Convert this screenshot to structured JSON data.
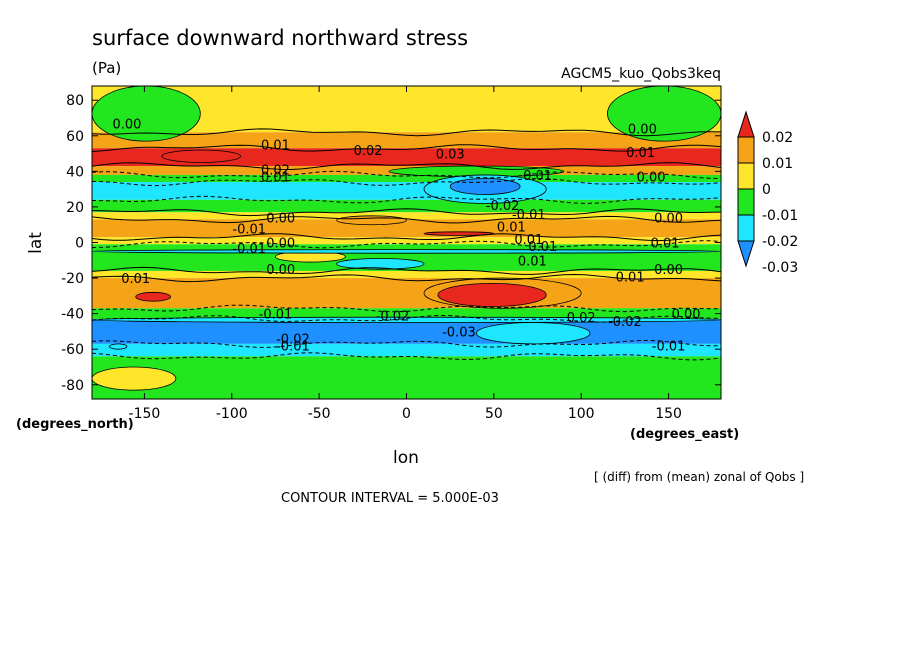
{
  "chart_data": {
    "type": "heatmap",
    "title": "surface downward northward stress",
    "units": "(Pa)",
    "run_label": "AGCM5_kuo_Qobs3keq",
    "xlabel": "lon",
    "ylabel": "lat",
    "x_units": "(degrees_east)",
    "y_units": "(degrees_north)",
    "xlim": [
      -180,
      180
    ],
    "ylim": [
      -88,
      88
    ],
    "x_ticks": [
      "-150",
      "-100",
      "-50",
      "0",
      "50",
      "100",
      "150"
    ],
    "x_tick_values": [
      -150,
      -100,
      -50,
      0,
      50,
      100,
      150
    ],
    "y_ticks": [
      "80",
      "60",
      "40",
      "20",
      "0",
      "-20",
      "-40",
      "-60",
      "-80"
    ],
    "y_tick_values": [
      80,
      60,
      40,
      20,
      0,
      -20,
      -40,
      -60,
      -80
    ],
    "note": "[ (diff) from (mean) zonal of Qobs ]",
    "contour_interval": "CONTOUR INTERVAL = 5.000E-03",
    "colorbar": {
      "labels": [
        "0.02",
        "0.01",
        "0",
        "-0.01",
        "-0.02",
        "-0.03"
      ],
      "colors": [
        "#e8281e",
        "#f5a418",
        "#ffe62a",
        "#22e61e",
        "#1ee6ff",
        "#1e90ff"
      ]
    },
    "bands": [
      {
        "lat": [
          62,
          88
        ],
        "level": "0",
        "color": "#ffe62a"
      },
      {
        "lat": [
          53,
          62
        ],
        "level": "0.01",
        "color": "#f5a418"
      },
      {
        "lat": [
          43,
          53
        ],
        "level": "0.02",
        "color": "#e8281e"
      },
      {
        "lat": [
          38,
          43
        ],
        "level": "0.01",
        "color": "#f5a418"
      },
      {
        "lat": [
          34,
          38
        ],
        "level": "-0.01",
        "color": "#22e61e"
      },
      {
        "lat": [
          24,
          34
        ],
        "level": "-0.02",
        "color": "#1ee6ff"
      },
      {
        "lat": [
          17,
          24
        ],
        "level": "-0.01",
        "color": "#22e61e"
      },
      {
        "lat": [
          13,
          17
        ],
        "level": "0",
        "color": "#ffe62a"
      },
      {
        "lat": [
          3,
          13
        ],
        "level": "0.01",
        "color": "#f5a418"
      },
      {
        "lat": [
          -1,
          3
        ],
        "level": "0",
        "color": "#ffe62a"
      },
      {
        "lat": [
          -16,
          -1
        ],
        "level": "-0.01",
        "color": "#22e61e"
      },
      {
        "lat": [
          -20,
          -16
        ],
        "level": "0",
        "color": "#ffe62a"
      },
      {
        "lat": [
          -37,
          -20
        ],
        "level": "0.01",
        "color": "#f5a418"
      },
      {
        "lat": [
          -43,
          -37
        ],
        "level": "-0.01",
        "color": "#22e61e"
      },
      {
        "lat": [
          -57,
          -43
        ],
        "level": "-0.03",
        "color": "#1e90ff"
      },
      {
        "lat": [
          -64,
          -57
        ],
        "level": "-0.02",
        "color": "#1ee6ff"
      },
      {
        "lat": [
          -88,
          -64
        ],
        "level": "-0.01",
        "color": "#22e61e"
      }
    ],
    "patches": [
      {
        "lon": [
          -180,
          -118
        ],
        "lat": [
          57,
          88
        ],
        "level": "-0.01",
        "color": "#22e61e"
      },
      {
        "lon": [
          115,
          180
        ],
        "lat": [
          57,
          88
        ],
        "level": "-0.01",
        "color": "#22e61e"
      },
      {
        "lon": [
          -140,
          -95
        ],
        "lat": [
          45,
          52
        ],
        "level": "0.02",
        "color": "#e8281e"
      },
      {
        "lon": [
          -10,
          90
        ],
        "lat": [
          37,
          43
        ],
        "level": "-0.01",
        "color": "#22e61e"
      },
      {
        "lon": [
          10,
          80
        ],
        "lat": [
          22,
          38
        ],
        "level": "-0.02",
        "color": "#1ee6ff"
      },
      {
        "lon": [
          25,
          65
        ],
        "lat": [
          27,
          36
        ],
        "level": "-0.03",
        "color": "#1e90ff"
      },
      {
        "lon": [
          -40,
          0
        ],
        "lat": [
          10,
          15
        ],
        "level": "0.01",
        "color": "#f5a418"
      },
      {
        "lon": [
          -75,
          -35
        ],
        "lat": [
          -11,
          -5
        ],
        "level": "0",
        "color": "#ffe62a"
      },
      {
        "lon": [
          -180,
          180
        ],
        "lat": [
          -6,
          -4
        ],
        "level": "-0.02",
        "color": "#1ee6ff"
      },
      {
        "lon": [
          -40,
          10
        ],
        "lat": [
          -15,
          -9
        ],
        "level": "-0.02",
        "color": "#1ee6ff"
      },
      {
        "lon": [
          10,
          100
        ],
        "lat": [
          -37,
          -20
        ],
        "level": "0.01",
        "color": "#f5a418"
      },
      {
        "lon": [
          18,
          80
        ],
        "lat": [
          -36,
          -23
        ],
        "level": "0.02",
        "color": "#e8281e"
      },
      {
        "lon": [
          -155,
          -135
        ],
        "lat": [
          -33,
          -28
        ],
        "level": "0.02",
        "color": "#e8281e"
      },
      {
        "lon": [
          -180,
          180
        ],
        "lat": [
          -45,
          -42
        ],
        "level": "-0.02",
        "color": "#1ee6ff"
      },
      {
        "lon": [
          40,
          105
        ],
        "lat": [
          -57,
          -45
        ],
        "level": "-0.02",
        "color": "#1ee6ff"
      },
      {
        "lon": [
          -170,
          -170
        ],
        "lat": [
          -60,
          -57
        ],
        "level": "-0.02",
        "color": "#1ee6ff"
      },
      {
        "lon": [
          -180,
          -132
        ],
        "lat": [
          -83,
          -70
        ],
        "level": "0",
        "color": "#ffe62a"
      },
      {
        "lon": [
          10,
          50
        ],
        "lat": [
          4,
          6
        ],
        "level": "0.02",
        "color": "#e8281e"
      }
    ],
    "contour_labels": [
      {
        "text": "0.00",
        "lon": -160,
        "lat": 67
      },
      {
        "text": "0.01",
        "lon": -75,
        "lat": 55
      },
      {
        "text": "0.02",
        "lon": -22,
        "lat": 52
      },
      {
        "text": "0.03",
        "lon": 25,
        "lat": 50
      },
      {
        "text": "0.02",
        "lon": -75,
        "lat": 41
      },
      {
        "text": "0.01",
        "lon": -75,
        "lat": 37
      },
      {
        "text": "0.00",
        "lon": 135,
        "lat": 64
      },
      {
        "text": "0.01",
        "lon": 134,
        "lat": 51
      },
      {
        "text": "0.00",
        "lon": 140,
        "lat": 37
      },
      {
        "text": "0.01",
        "lon": 75,
        "lat": 38
      },
      {
        "text": "-0.02",
        "lon": 55,
        "lat": 21
      },
      {
        "text": "-0.01",
        "lon": 70,
        "lat": 16
      },
      {
        "text": "0.00",
        "lon": -72,
        "lat": 14
      },
      {
        "text": "-0.01",
        "lon": -90,
        "lat": 8
      },
      {
        "text": "0.00",
        "lon": 150,
        "lat": 14
      },
      {
        "text": "0.01",
        "lon": 60,
        "lat": 9
      },
      {
        "text": "0.01",
        "lon": 70,
        "lat": 2
      },
      {
        "text": "0.01",
        "lon": 78,
        "lat": -2
      },
      {
        "text": "0.00",
        "lon": -72,
        "lat": 0
      },
      {
        "text": "-0.01",
        "lon": -90,
        "lat": -3
      },
      {
        "text": "0.01",
        "lon": 148,
        "lat": 0
      },
      {
        "text": "0.01",
        "lon": 72,
        "lat": -10
      },
      {
        "text": "0.00",
        "lon": -72,
        "lat": -15
      },
      {
        "text": "0.00",
        "lon": 150,
        "lat": -15
      },
      {
        "text": "0.01",
        "lon": -155,
        "lat": -20
      },
      {
        "text": "0.01",
        "lon": 128,
        "lat": -19
      },
      {
        "text": "-0.02",
        "lon": -8,
        "lat": -41
      },
      {
        "text": "0.02",
        "lon": 100,
        "lat": -42
      },
      {
        "text": "-0.02",
        "lon": 125,
        "lat": -44
      },
      {
        "text": "-0.01",
        "lon": -75,
        "lat": -40
      },
      {
        "text": "-0.03",
        "lon": 30,
        "lat": -50
      },
      {
        "text": "-0.02",
        "lon": -65,
        "lat": -54
      },
      {
        "text": "-0.01",
        "lon": -65,
        "lat": -58
      },
      {
        "text": "-0.01",
        "lon": 150,
        "lat": -58
      },
      {
        "text": "0.00",
        "lon": 160,
        "lat": -40
      }
    ]
  }
}
